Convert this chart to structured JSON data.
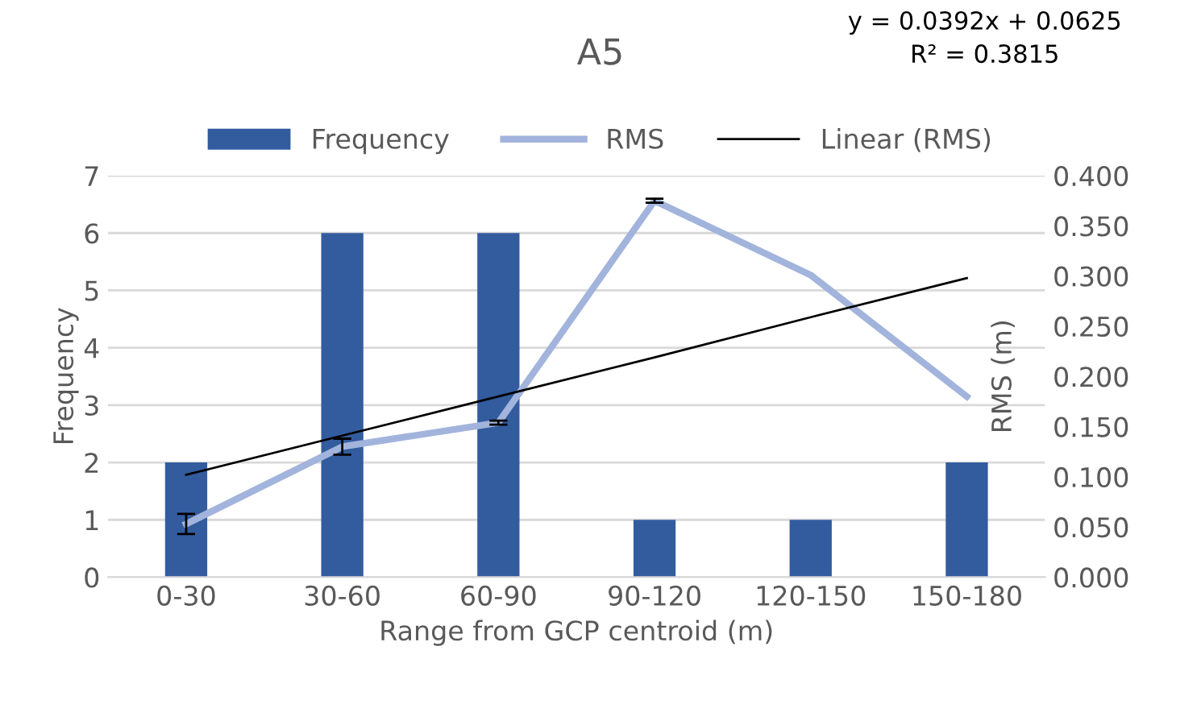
{
  "chart_data": {
    "type": "bar",
    "title": "A5",
    "xlabel": "Range from GCP centroid (m)",
    "ylabel": "Frequency",
    "y2label": "RMS (m)",
    "categories": [
      "0-30",
      "30-60",
      "60-90",
      "90-120",
      "120-150",
      "150-180"
    ],
    "series": [
      {
        "name": "Frequency",
        "color": "#335c9e",
        "values": [
          2,
          6,
          6,
          1,
          1,
          2
        ]
      },
      {
        "name": "RMS",
        "type": "line",
        "axis": "y2",
        "color": "#a2b4dc",
        "values": [
          0.053,
          0.13,
          0.154,
          0.375,
          0.301,
          0.18
        ],
        "errors": [
          0.01,
          0.008,
          0.002,
          0.002,
          null,
          null
        ]
      },
      {
        "name": "Linear (RMS)",
        "type": "line",
        "axis": "y2",
        "color": "#000000",
        "values": [
          0.102,
          0.141,
          0.18,
          0.219,
          0.259,
          0.298
        ]
      }
    ],
    "ylim": [
      0,
      7
    ],
    "yticks": [
      0,
      1,
      2,
      3,
      4,
      5,
      6,
      7
    ],
    "y2lim": [
      0,
      0.4
    ],
    "y2ticks": [
      {
        "value": 0,
        "label": "0.000"
      },
      {
        "value": 0.05,
        "label": "0.050"
      },
      {
        "value": 0.1,
        "label": "0.100"
      },
      {
        "value": 0.15,
        "label": "0.150"
      },
      {
        "value": 0.2,
        "label": "0.200"
      },
      {
        "value": 0.25,
        "label": "0.250"
      },
      {
        "value": 0.3,
        "label": "0.300"
      },
      {
        "value": 0.35,
        "label": "0.350"
      },
      {
        "value": 0.4,
        "label": "0.400"
      }
    ],
    "annotations": [
      "y = 0.0392x + 0.0625\nR² = 0.3815"
    ],
    "grid": "y",
    "legend": "top"
  }
}
